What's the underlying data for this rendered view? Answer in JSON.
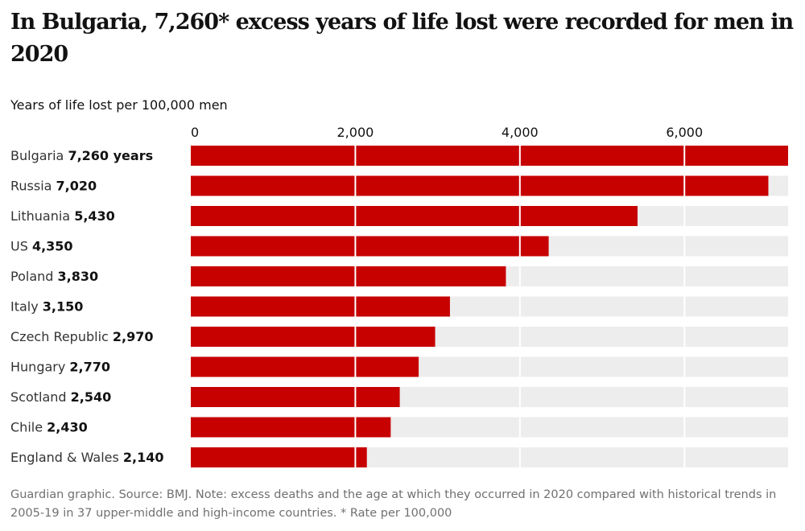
{
  "chart_data": {
    "type": "bar",
    "orientation": "horizontal",
    "title": "In Bulgaria, 7,260* excess years of life lost were recorded for men in 2020",
    "xlabel": "Years of life lost per 100,000 men",
    "ylabel": "",
    "xlim": [
      0,
      7260
    ],
    "xticks": [
      0,
      2000,
      4000,
      6000
    ],
    "xtick_labels": [
      "0",
      "2,000",
      "4,000",
      "6,000"
    ],
    "grid": true,
    "categories": [
      "Bulgaria",
      "Russia",
      "Lithuania",
      "US",
      "Poland",
      "Italy",
      "Czech Republic",
      "Hungary",
      "Scotland",
      "Chile",
      "England & Wales"
    ],
    "values": [
      7260,
      7020,
      5430,
      4350,
      3830,
      3150,
      2970,
      2770,
      2540,
      2430,
      2140
    ],
    "value_labels": [
      "7,260 years",
      "7,020",
      "5,430",
      "4,350",
      "3,830",
      "3,150",
      "2,970",
      "2,770",
      "2,540",
      "2,430",
      "2,140"
    ],
    "footnote": "Guardian graphic. Source: BMJ. Note: excess deaths and the age at which they occurred in 2020 compared with historical trends in 2005-19 in 37 upper-middle and high-income countries. * Rate per 100,000",
    "colors": {
      "bar": "#c70000",
      "track": "#ededed",
      "gridline": "#ffffff"
    }
  }
}
